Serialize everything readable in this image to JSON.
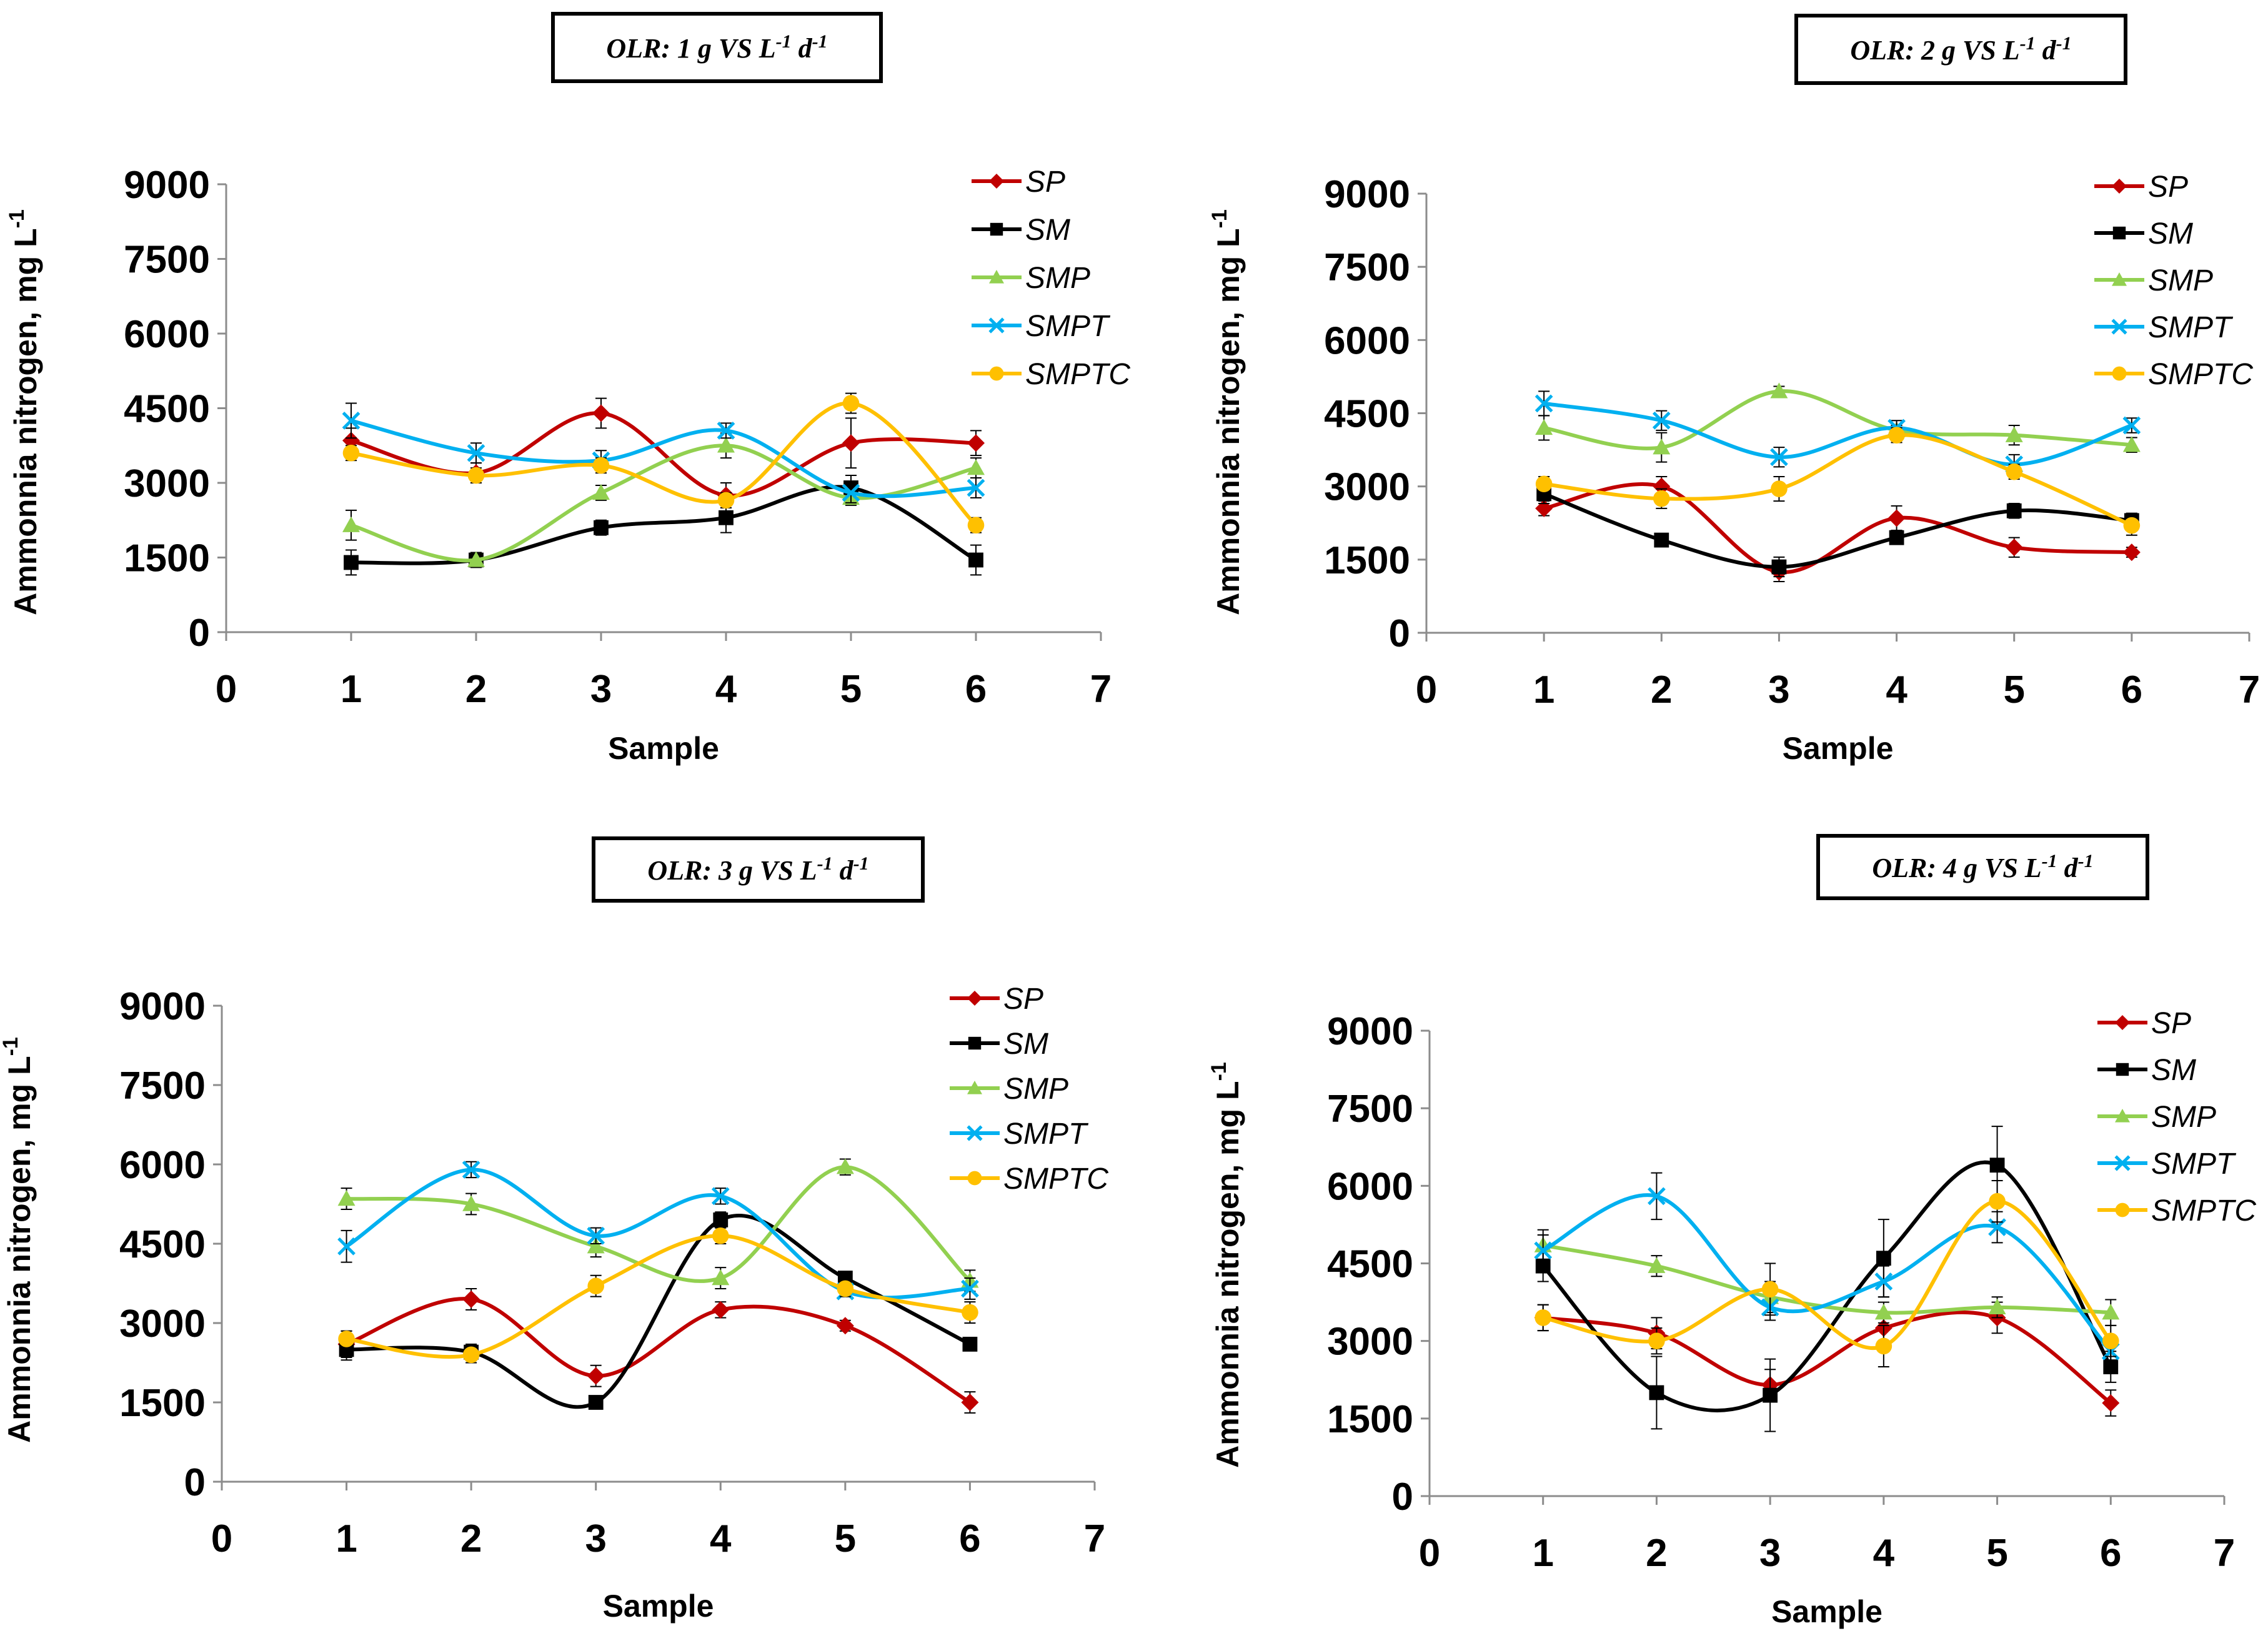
{
  "figure": {
    "y_axis_label": "Ammonnia nitrogen, mg L",
    "y_axis_label_sup": "-1",
    "x_axis_label": "Sample"
  },
  "colors": {
    "SP": "#c00000",
    "SM": "#000000",
    "SMP": "#92d050",
    "SMPT": "#00b0f0",
    "SMPTC": "#ffc000",
    "axis": "#8c8c8c",
    "error_bar": "#000000"
  },
  "chart_data": [
    {
      "type": "line",
      "title": "OLR: 1 g VS L-1 d-1",
      "title_parts": {
        "prefix": "OLR: 1 g VS L",
        "sup1": "-1",
        "mid": " d",
        "sup2": "-1"
      },
      "xlabel": "Sample",
      "ylabel": "Ammonnia nitrogen, mg L-1",
      "xlim": [
        0,
        7
      ],
      "ylim": [
        0,
        9000
      ],
      "x_ticks": [
        "0",
        "1",
        "2",
        "3",
        "4",
        "5",
        "6",
        "7"
      ],
      "y_ticks": [
        "0",
        "1500",
        "3000",
        "4500",
        "6000",
        "7500",
        "9000"
      ],
      "legend_position": "top-right",
      "x": [
        1,
        2,
        3,
        4,
        5,
        6
      ],
      "series": [
        {
          "name": "SP",
          "marker": "diamond",
          "values": [
            3850,
            3200,
            4400,
            2750,
            3800,
            3800
          ],
          "errors": [
            250,
            200,
            300,
            250,
            500,
            250
          ]
        },
        {
          "name": "SM",
          "marker": "square",
          "values": [
            1400,
            1450,
            2100,
            2300,
            2900,
            1450
          ],
          "errors": [
            250,
            100,
            150,
            300,
            250,
            300
          ]
        },
        {
          "name": "SMP",
          "marker": "triangle",
          "values": [
            2150,
            1450,
            2800,
            3750,
            2700,
            3300
          ],
          "errors": [
            300,
            150,
            150,
            250,
            150,
            200
          ]
        },
        {
          "name": "SMPT",
          "marker": "cross",
          "values": [
            4250,
            3600,
            3450,
            4050,
            2800,
            2900
          ],
          "errors": [
            350,
            200,
            200,
            150,
            200,
            200
          ]
        },
        {
          "name": "SMPTC",
          "marker": "circle",
          "values": [
            3600,
            3150,
            3350,
            2650,
            4600,
            2150
          ],
          "errors": [
            150,
            150,
            150,
            150,
            200,
            150
          ]
        }
      ]
    },
    {
      "type": "line",
      "title": "OLR: 2 g VS L-1 d-1",
      "title_parts": {
        "prefix": "OLR: 2 g VS L",
        "sup1": "-1",
        "mid": " d",
        "sup2": "-1"
      },
      "xlabel": "Sample",
      "ylabel": "Ammonnia nitrogen, mg L-1",
      "xlim": [
        0,
        7
      ],
      "ylim": [
        0,
        9000
      ],
      "x_ticks": [
        "0",
        "1",
        "2",
        "3",
        "4",
        "5",
        "6",
        "7"
      ],
      "y_ticks": [
        "0",
        "1500",
        "3000",
        "4500",
        "6000",
        "7500",
        "9000"
      ],
      "legend_position": "top-right",
      "x": [
        1,
        2,
        3,
        4,
        5,
        6
      ],
      "series": [
        {
          "name": "SP",
          "marker": "diamond",
          "values": [
            2550,
            3000,
            1250,
            2350,
            1750,
            1650
          ],
          "errors": [
            150,
            200,
            200,
            250,
            200,
            100
          ]
        },
        {
          "name": "SM",
          "marker": "square",
          "values": [
            2850,
            1900,
            1350,
            1950,
            2500,
            2300
          ],
          "errors": [
            200,
            100,
            200,
            100,
            150,
            150
          ]
        },
        {
          "name": "SMP",
          "marker": "triangle",
          "values": [
            4200,
            3800,
            4950,
            4150,
            4050,
            3850
          ],
          "errors": [
            250,
            300,
            100,
            100,
            200,
            150
          ]
        },
        {
          "name": "SMPT",
          "marker": "cross",
          "values": [
            4700,
            4350,
            3600,
            4200,
            3450,
            4250
          ],
          "errors": [
            250,
            200,
            200,
            150,
            200,
            150
          ]
        },
        {
          "name": "SMPTC",
          "marker": "circle",
          "values": [
            3050,
            2750,
            2950,
            4050,
            3300,
            2200
          ],
          "errors": [
            150,
            200,
            250,
            150,
            150,
            200
          ]
        }
      ]
    },
    {
      "type": "line",
      "title": "OLR: 3 g VS L-1 d-1",
      "title_parts": {
        "prefix": "OLR: 3 g VS L",
        "sup1": "-1",
        "mid": " d",
        "sup2": "-1"
      },
      "xlabel": "Sample",
      "ylabel": "Ammonnia nitrogen, mg L-1",
      "xlim": [
        0,
        7
      ],
      "ylim": [
        0,
        9000
      ],
      "x_ticks": [
        "0",
        "1",
        "2",
        "3",
        "4",
        "5",
        "6",
        "7"
      ],
      "y_ticks": [
        "0",
        "1500",
        "3000",
        "4500",
        "6000",
        "7500",
        "9000"
      ],
      "legend_position": "top-right",
      "x": [
        1,
        2,
        3,
        4,
        5,
        6
      ],
      "series": [
        {
          "name": "SP",
          "marker": "diamond",
          "values": [
            2600,
            3450,
            2000,
            3250,
            2950,
            1500
          ],
          "errors": [
            250,
            200,
            200,
            150,
            100,
            200
          ]
        },
        {
          "name": "SM",
          "marker": "square",
          "values": [
            2500,
            2450,
            1500,
            4950,
            3850,
            2600
          ],
          "errors": [
            200,
            150,
            100,
            150,
            100,
            100
          ]
        },
        {
          "name": "SMP",
          "marker": "triangle",
          "values": [
            5350,
            5250,
            4450,
            3850,
            5950,
            3800
          ],
          "errors": [
            200,
            200,
            200,
            200,
            150,
            200
          ]
        },
        {
          "name": "SMPT",
          "marker": "cross",
          "values": [
            4450,
            5900,
            4650,
            5400,
            3600,
            3650
          ],
          "errors": [
            300,
            150,
            150,
            150,
            100,
            200
          ]
        },
        {
          "name": "SMPTC",
          "marker": "circle",
          "values": [
            2700,
            2400,
            3700,
            4650,
            3650,
            3200
          ],
          "errors": [
            150,
            150,
            200,
            150,
            150,
            200
          ]
        }
      ]
    },
    {
      "type": "line",
      "title": "OLR: 4 g VS L-1 d-1",
      "title_parts": {
        "prefix": "OLR: 4 g VS L",
        "sup1": "-1",
        "mid": " d",
        "sup2": "-1"
      },
      "xlabel": "Sample",
      "ylabel": "Ammonnia nitrogen, mg L-1",
      "xlim": [
        0,
        7
      ],
      "ylim": [
        0,
        9000
      ],
      "x_ticks": [
        "0",
        "1",
        "2",
        "3",
        "4",
        "5",
        "6",
        "7"
      ],
      "y_ticks": [
        "0",
        "1500",
        "3000",
        "4500",
        "6000",
        "7500",
        "9000"
      ],
      "legend_position": "top-right",
      "x": [
        1,
        2,
        3,
        4,
        5,
        6
      ],
      "series": [
        {
          "name": "SP",
          "marker": "diamond",
          "values": [
            3450,
            3150,
            2150,
            3250,
            3450,
            1800
          ],
          "errors": [
            250,
            300,
            300,
            300,
            300,
            250
          ]
        },
        {
          "name": "SM",
          "marker": "square",
          "values": [
            4450,
            2000,
            1950,
            4600,
            6400,
            2500
          ],
          "errors": [
            300,
            700,
            700,
            750,
            750,
            300
          ]
        },
        {
          "name": "SMP",
          "marker": "triangle",
          "values": [
            4850,
            4450,
            3850,
            3550,
            3650,
            3550
          ],
          "errors": [
            300,
            200,
            300,
            200,
            200,
            250
          ]
        },
        {
          "name": "SMPT",
          "marker": "cross",
          "values": [
            4750,
            5800,
            3650,
            4150,
            5200,
            2800
          ],
          "errors": [
            300,
            450,
            250,
            300,
            300,
            250
          ]
        },
        {
          "name": "SMPTC",
          "marker": "circle",
          "values": [
            3450,
            3000,
            4000,
            2900,
            5700,
            3000
          ],
          "errors": [
            250,
            250,
            500,
            400,
            400,
            300
          ]
        }
      ]
    }
  ]
}
